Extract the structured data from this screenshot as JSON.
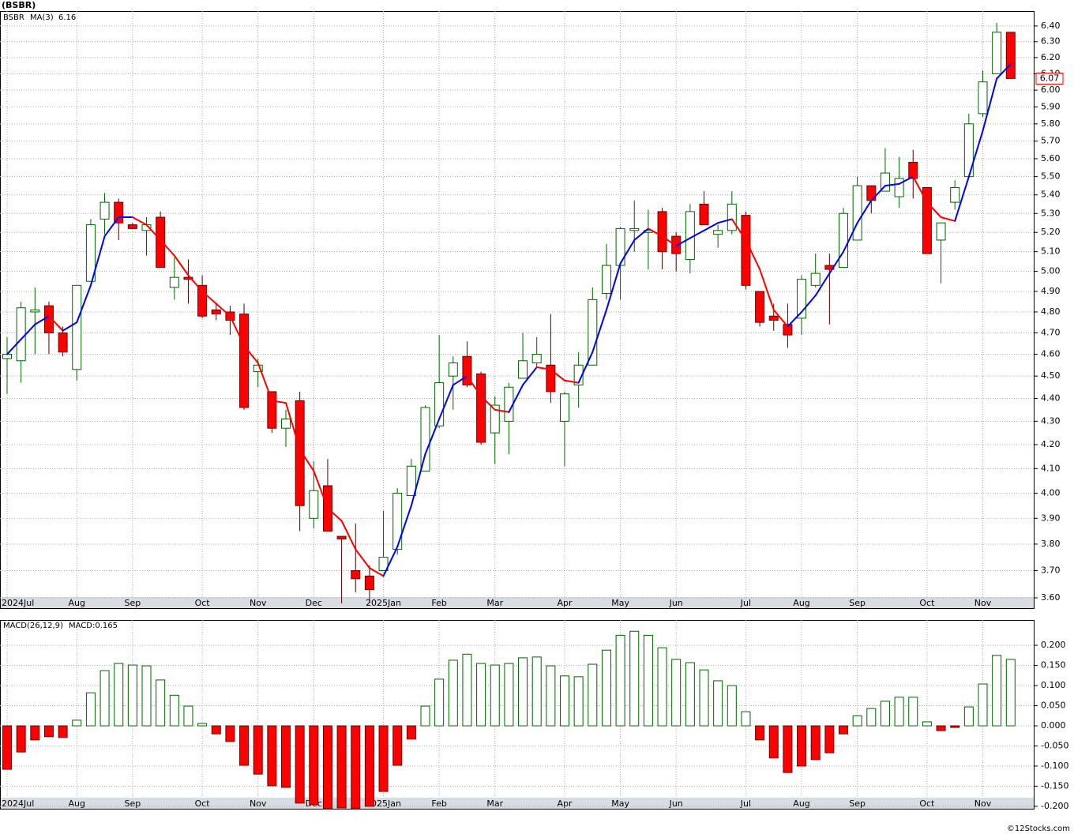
{
  "title": "(BSBR)",
  "footer": "©12Stocks.com",
  "chart_data": [
    {
      "type": "candlestick",
      "name": "BSBR",
      "categories": [
        "2024Jul",
        null,
        null,
        null,
        null,
        "Aug",
        null,
        null,
        null,
        "Sep",
        null,
        null,
        null,
        null,
        "Oct",
        null,
        null,
        null,
        "Nov",
        null,
        null,
        null,
        "Dec",
        null,
        null,
        null,
        null,
        "2025Jan",
        null,
        null,
        null,
        "Feb",
        null,
        null,
        null,
        "Mar",
        null,
        null,
        null,
        null,
        "Apr",
        null,
        null,
        null,
        "May",
        null,
        null,
        null,
        "Jun",
        null,
        null,
        null,
        null,
        "Jul",
        null,
        null,
        null,
        "Aug",
        null,
        null,
        null,
        "Sep",
        null,
        null,
        null,
        null,
        "Oct",
        null,
        null,
        null,
        "Nov",
        null,
        null
      ],
      "open": [
        4.58,
        4.57,
        4.8,
        4.83,
        4.7,
        4.53,
        4.95,
        5.27,
        5.36,
        5.24,
        5.21,
        5.28,
        4.92,
        4.97,
        4.93,
        4.81,
        4.8,
        4.79,
        4.52,
        4.43,
        4.27,
        4.39,
        3.9,
        4.03,
        3.83,
        3.7,
        3.68,
        3.7,
        3.78,
        3.99,
        4.09,
        4.28,
        4.5,
        4.59,
        4.51,
        4.25,
        4.3,
        4.49,
        4.56,
        4.55,
        4.3,
        4.46,
        4.55,
        4.89,
        5.03,
        5.21,
        5.2,
        5.31,
        5.18,
        5.06,
        5.35,
        5.19,
        5.21,
        5.29,
        4.9,
        4.78,
        4.74,
        4.77,
        4.93,
        5.03,
        5.02,
        5.16,
        5.45,
        5.42,
        5.39,
        5.58,
        5.44,
        5.16,
        5.36,
        5.5,
        5.86,
        6.1,
        6.36
      ],
      "high": [
        4.68,
        4.85,
        4.92,
        4.85,
        4.73,
        4.93,
        5.27,
        5.41,
        5.38,
        5.25,
        5.28,
        5.31,
        5.07,
        5.06,
        4.98,
        4.84,
        4.83,
        4.84,
        4.58,
        4.43,
        4.35,
        4.43,
        4.13,
        4.14,
        3.83,
        3.88,
        3.72,
        3.93,
        4.02,
        4.14,
        4.37,
        4.69,
        4.59,
        4.66,
        4.52,
        4.41,
        4.47,
        4.7,
        4.68,
        4.79,
        4.43,
        4.61,
        4.92,
        5.14,
        5.23,
        5.37,
        5.32,
        5.33,
        5.2,
        5.35,
        5.42,
        5.24,
        5.42,
        5.31,
        4.9,
        4.84,
        4.84,
        4.98,
        5.09,
        5.09,
        5.33,
        5.5,
        5.45,
        5.66,
        5.61,
        5.65,
        5.44,
        5.25,
        5.48,
        5.86,
        6.12,
        6.42,
        6.36
      ],
      "low": [
        4.42,
        4.47,
        4.6,
        4.6,
        4.59,
        4.48,
        4.95,
        5.19,
        5.16,
        5.22,
        5.08,
        5.02,
        4.86,
        4.84,
        4.77,
        4.76,
        4.69,
        4.35,
        4.45,
        4.25,
        4.19,
        3.85,
        3.86,
        3.85,
        3.58,
        3.62,
        3.58,
        3.7,
        3.76,
        3.99,
        4.09,
        4.27,
        4.35,
        4.45,
        4.2,
        4.12,
        4.16,
        4.49,
        4.54,
        4.38,
        4.11,
        4.36,
        4.55,
        4.86,
        4.86,
        5.1,
        5.01,
        5.01,
        5.0,
        4.99,
        5.24,
        5.12,
        5.19,
        4.91,
        4.73,
        4.71,
        4.63,
        4.69,
        4.92,
        4.74,
        5.02,
        5.16,
        5.3,
        5.42,
        5.33,
        5.38,
        5.09,
        4.94,
        5.32,
        5.5,
        5.84,
        6.1,
        6.07
      ],
      "close": [
        4.6,
        4.82,
        4.81,
        4.7,
        4.61,
        4.93,
        5.24,
        5.36,
        5.25,
        5.22,
        5.24,
        5.02,
        4.97,
        4.96,
        4.78,
        4.79,
        4.76,
        4.36,
        4.55,
        4.27,
        4.31,
        3.95,
        4.01,
        3.85,
        3.82,
        3.67,
        3.63,
        3.75,
        4.0,
        4.11,
        4.36,
        4.47,
        4.56,
        4.46,
        4.21,
        4.37,
        4.45,
        4.57,
        4.6,
        4.43,
        4.42,
        4.55,
        4.86,
        5.03,
        5.22,
        5.22,
        5.21,
        5.1,
        5.09,
        5.31,
        5.24,
        5.21,
        5.35,
        4.93,
        4.75,
        4.76,
        4.69,
        4.96,
        4.99,
        5.01,
        5.3,
        5.45,
        5.37,
        5.52,
        5.49,
        5.49,
        5.09,
        5.25,
        5.44,
        5.8,
        6.05,
        6.36,
        6.07
      ],
      "last_label": "6.07",
      "up_color": "#006400",
      "down_color": "#ff0000",
      "ylog": true,
      "ylim": [
        3.563,
        6.497
      ],
      "yticks": [
        {
          "value": 3.6,
          "label": "3.60"
        },
        {
          "value": 3.7,
          "label": "3.70"
        },
        {
          "value": 3.8,
          "label": "3.80"
        },
        {
          "value": 3.9,
          "label": "3.90"
        },
        {
          "value": 4.0,
          "label": "4.00"
        },
        {
          "value": 4.1,
          "label": "4.10"
        },
        {
          "value": 4.2,
          "label": "4.20"
        },
        {
          "value": 4.3,
          "label": "4.30"
        },
        {
          "value": 4.4,
          "label": "4.40"
        },
        {
          "value": 4.5,
          "label": "4.50"
        },
        {
          "value": 4.6,
          "label": "4.60"
        },
        {
          "value": 4.7,
          "label": "4.70"
        },
        {
          "value": 4.8,
          "label": "4.80"
        },
        {
          "value": 4.9,
          "label": "4.90"
        },
        {
          "value": 5.0,
          "label": "5.00"
        },
        {
          "value": 5.1,
          "label": "5.10"
        },
        {
          "value": 5.2,
          "label": "5.20"
        },
        {
          "value": 5.3,
          "label": "5.30"
        },
        {
          "value": 5.4,
          "label": "5.40"
        },
        {
          "value": 5.5,
          "label": "5.50"
        },
        {
          "value": 5.6,
          "label": "5.60"
        },
        {
          "value": 5.7,
          "label": "5.70"
        },
        {
          "value": 5.8,
          "label": "5.80"
        },
        {
          "value": 5.9,
          "label": "5.90"
        },
        {
          "value": 6.0,
          "label": "6.00"
        },
        {
          "value": 6.1,
          "label": "6.10"
        },
        {
          "value": 6.2,
          "label": "6.20"
        },
        {
          "value": 6.3,
          "label": "6.30"
        },
        {
          "value": 6.4,
          "label": "6.40"
        }
      ],
      "grid": true,
      "overlay": {
        "name": "MA(3)",
        "value_label": "6.16",
        "up_color": "#0000ff",
        "down_color": "#ff0000",
        "values": [
          4.6,
          4.67,
          4.74,
          4.78,
          4.71,
          4.75,
          4.93,
          5.18,
          5.28,
          5.28,
          5.24,
          5.16,
          5.08,
          4.98,
          4.9,
          4.84,
          4.78,
          4.64,
          4.56,
          4.39,
          4.38,
          4.18,
          4.09,
          3.94,
          3.89,
          3.78,
          3.71,
          3.68,
          3.79,
          3.95,
          4.16,
          4.31,
          4.46,
          4.5,
          4.41,
          4.35,
          4.34,
          4.46,
          4.54,
          4.53,
          4.48,
          4.47,
          4.61,
          4.81,
          5.04,
          5.16,
          5.22,
          5.18,
          5.13,
          5.17,
          5.21,
          5.25,
          5.27,
          5.16,
          5.01,
          4.81,
          4.73,
          4.8,
          4.88,
          4.99,
          5.1,
          5.25,
          5.37,
          5.45,
          5.46,
          5.5,
          5.36,
          5.28,
          5.26,
          5.5,
          5.76,
          6.07,
          6.16
        ]
      }
    },
    {
      "type": "bar",
      "title": "MACD(26,12,9)",
      "value_label": "MACD:0.165",
      "values": [
        -0.108,
        -0.065,
        -0.035,
        -0.027,
        -0.029,
        0.014,
        0.082,
        0.137,
        0.155,
        0.151,
        0.149,
        0.114,
        0.076,
        0.049,
        0.006,
        -0.02,
        -0.039,
        -0.098,
        -0.12,
        -0.149,
        -0.153,
        -0.192,
        -0.196,
        -0.206,
        -0.204,
        -0.206,
        -0.2,
        -0.163,
        -0.098,
        -0.033,
        0.049,
        0.116,
        0.163,
        0.178,
        0.155,
        0.151,
        0.155,
        0.169,
        0.171,
        0.149,
        0.124,
        0.122,
        0.153,
        0.188,
        0.225,
        0.235,
        0.225,
        0.194,
        0.165,
        0.157,
        0.139,
        0.112,
        0.1,
        0.035,
        -0.035,
        -0.08,
        -0.116,
        -0.1,
        -0.084,
        -0.067,
        -0.02,
        0.025,
        0.043,
        0.061,
        0.071,
        0.071,
        0.01,
        -0.012,
        -0.004,
        0.047,
        0.104,
        0.175,
        0.165
      ],
      "pos_color": "#006400",
      "neg_color": "#ff0000",
      "ylim": [
        -0.206,
        0.263
      ],
      "yticks": [
        {
          "value": -0.2,
          "label": "-0.200"
        },
        {
          "value": -0.15,
          "label": "-0.150"
        },
        {
          "value": -0.1,
          "label": "-0.100"
        },
        {
          "value": -0.05,
          "label": "-0.050"
        },
        {
          "value": 0,
          "label": "0.000"
        },
        {
          "value": 0.05,
          "label": "0.050"
        },
        {
          "value": 0.1,
          "label": "0.100"
        },
        {
          "value": 0.15,
          "label": "0.150"
        },
        {
          "value": 0.2,
          "label": "0.200"
        }
      ],
      "grid": true
    }
  ]
}
